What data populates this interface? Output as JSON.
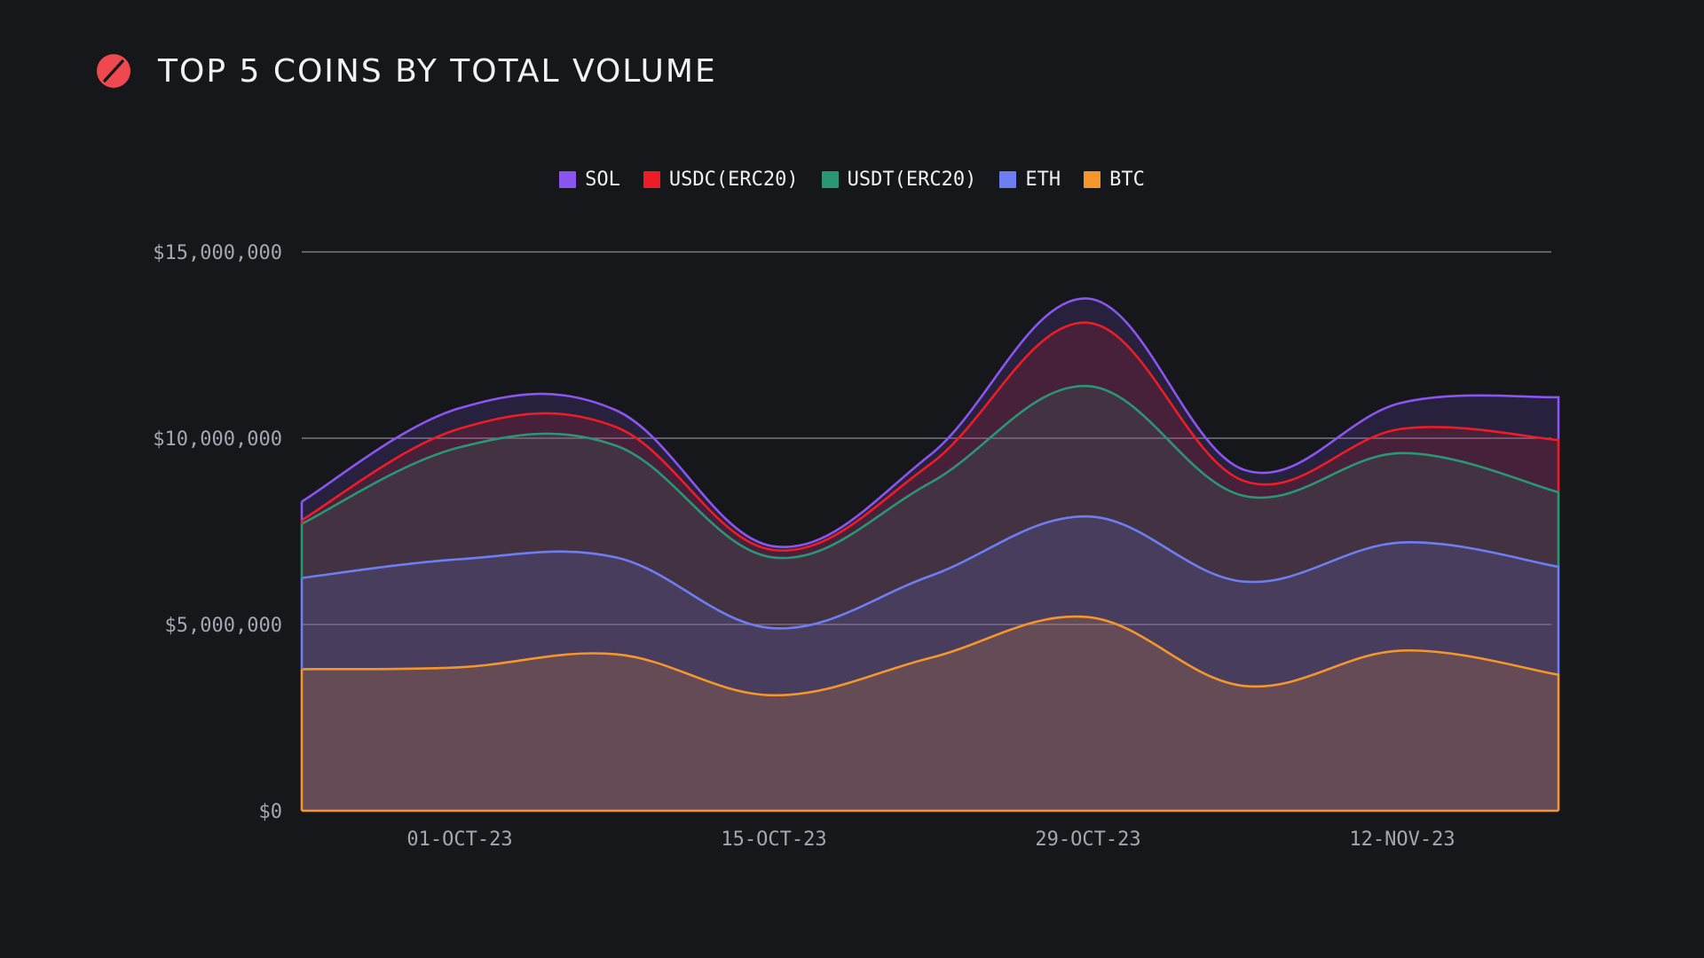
{
  "header": {
    "title": "TOP 5 COINS BY TOTAL VOLUME",
    "logo_icon": "slashed-circle-logo-icon"
  },
  "colors": {
    "background": "#16171b",
    "logo": "#f0484f",
    "grid": "#8b8c93"
  },
  "chart_data": {
    "type": "area",
    "stacked": true,
    "title": "TOP 5 COINS BY TOTAL VOLUME",
    "x": [
      "2023-09-24",
      "2023-10-01",
      "2023-10-08",
      "2023-10-15",
      "2023-10-22",
      "2023-10-29",
      "2023-11-05",
      "2023-11-12",
      "2023-11-19"
    ],
    "x_tick_labels": [
      "01-OCT-23",
      "15-OCT-23",
      "29-OCT-23",
      "12-NOV-23"
    ],
    "y_tick_labels": [
      "$0",
      "$5,000,000",
      "$10,000,000",
      "$15,000,000"
    ],
    "ylim": [
      0,
      15000000
    ],
    "grid": true,
    "legend_position": "top",
    "series": [
      {
        "name": "SOL",
        "color": "#8b55f0",
        "values": [
          500000,
          550000,
          450000,
          100000,
          250000,
          650000,
          300000,
          700000,
          1150000
        ]
      },
      {
        "name": "USDC(ERC20)",
        "color": "#ee1c24",
        "values": [
          100000,
          500000,
          500000,
          200000,
          500000,
          1700000,
          400000,
          650000,
          1400000
        ]
      },
      {
        "name": "USDT(ERC20)",
        "color": "#2a9675",
        "values": [
          1450000,
          3000000,
          3000000,
          1900000,
          2500000,
          3500000,
          2300000,
          2400000,
          2000000
        ]
      },
      {
        "name": "ETH",
        "color": "#6d7ef2",
        "values": [
          2450000,
          2900000,
          2600000,
          1800000,
          2200000,
          2700000,
          2800000,
          2900000,
          2900000
        ]
      },
      {
        "name": "BTC",
        "color": "#f5962c",
        "values": [
          3800000,
          3850000,
          4200000,
          3100000,
          4100000,
          5200000,
          3350000,
          4300000,
          3650000
        ]
      }
    ]
  }
}
